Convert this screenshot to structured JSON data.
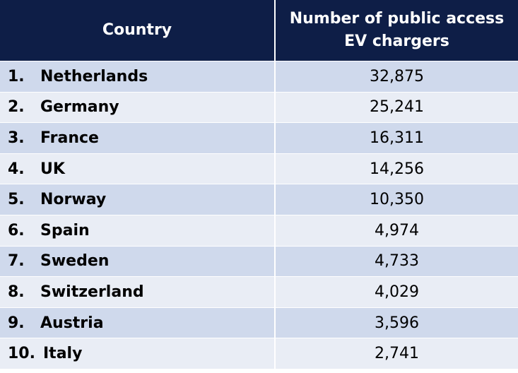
{
  "chart_data": {
    "type": "table",
    "columns": [
      "Country",
      "Number of public access EV chargers"
    ],
    "rows": [
      {
        "rank": "1.",
        "country": "Netherlands",
        "chargers": "32,875"
      },
      {
        "rank": "2.",
        "country": "Germany",
        "chargers": "25,241"
      },
      {
        "rank": "3.",
        "country": "France",
        "chargers": "16,311"
      },
      {
        "rank": "4.",
        "country": "UK",
        "chargers": "14,256"
      },
      {
        "rank": "5.",
        "country": "Norway",
        "chargers": "10,350"
      },
      {
        "rank": "6.",
        "country": "Spain",
        "chargers": "4,974"
      },
      {
        "rank": "7.",
        "country": "Sweden",
        "chargers": "4,733"
      },
      {
        "rank": "8.",
        "country": "Switzerland",
        "chargers": "4,029"
      },
      {
        "rank": "9.",
        "country": "Austria",
        "chargers": "3,596"
      },
      {
        "rank": "10.",
        "country": "Italy",
        "chargers": "2,741"
      }
    ]
  },
  "colors": {
    "header_bg": "#0e1e47",
    "row_odd_bg": "#cfd9ec",
    "row_even_bg": "#e9edf5"
  }
}
